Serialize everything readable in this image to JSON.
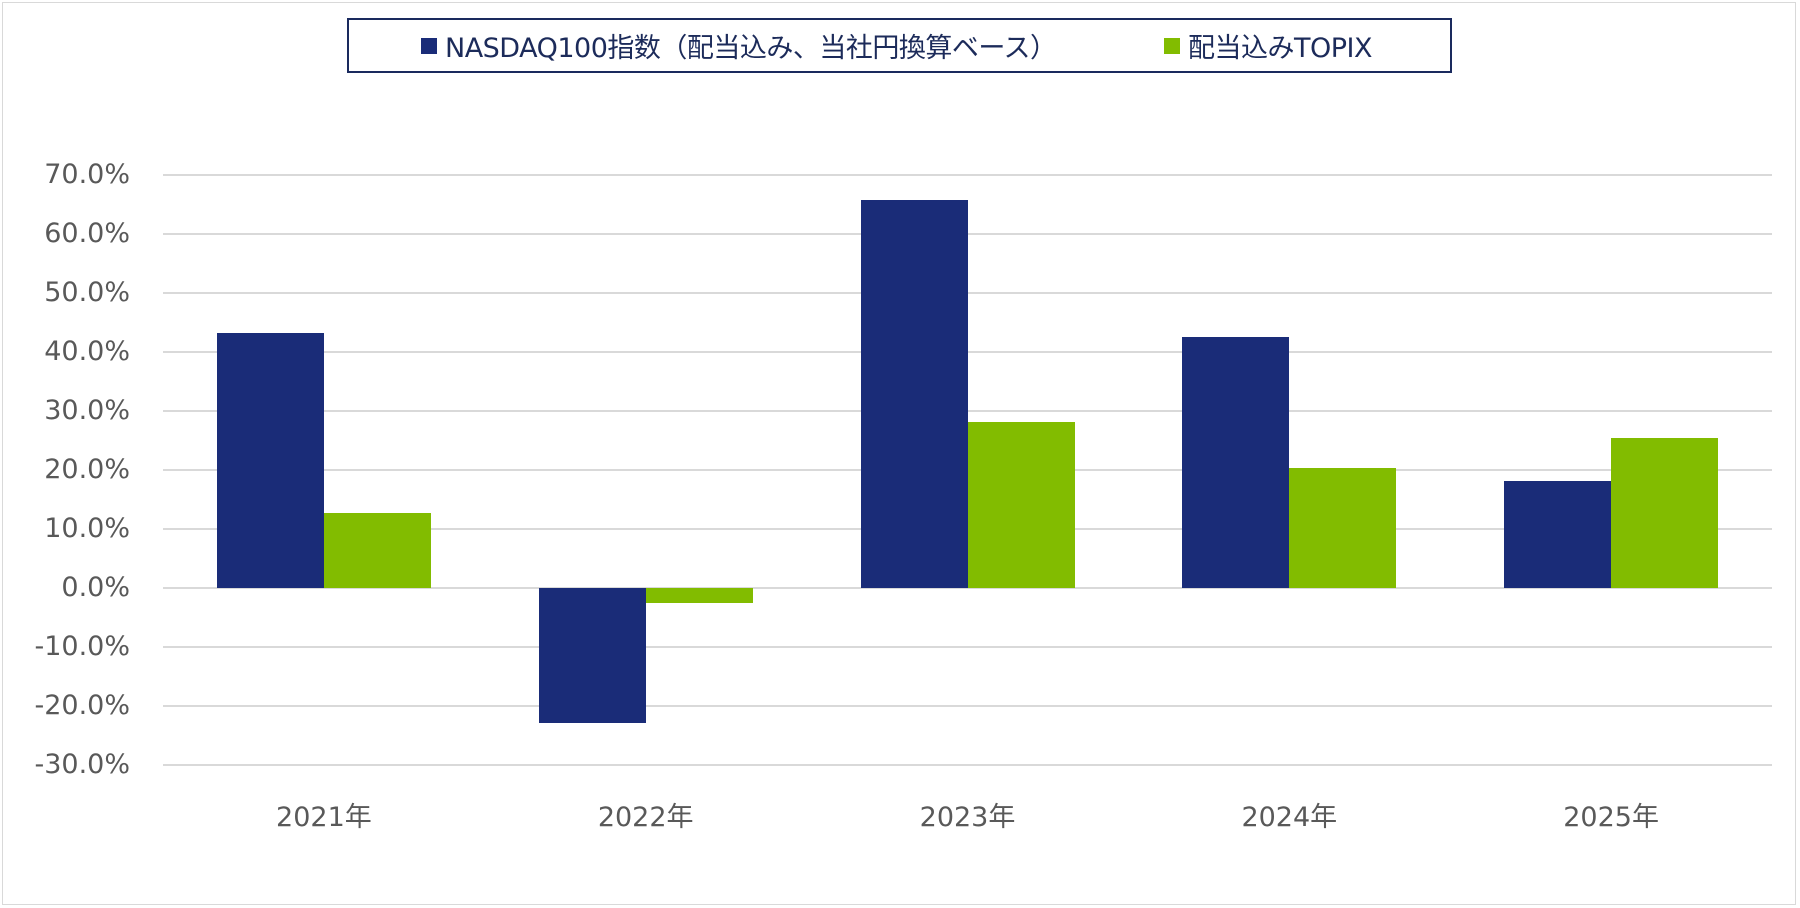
{
  "chart_data": {
    "type": "bar",
    "title": "",
    "xlabel": "",
    "ylabel": "",
    "categories": [
      "2021年",
      "2022年",
      "2023年",
      "2024年",
      "2025年"
    ],
    "series": [
      {
        "name": "NASDAQ100指数（配当込み、当社円換算ベース）",
        "color": "#1a2c78",
        "values": [
          43.3,
          -22.8,
          65.8,
          42.5,
          18.1
        ]
      },
      {
        "name": "配当込みTOPIX",
        "color": "#82bc00",
        "values": [
          12.7,
          -2.5,
          28.2,
          20.4,
          25.4
        ]
      }
    ],
    "ylim": [
      -30,
      70
    ],
    "yticks": [
      "70.0%",
      "60.0%",
      "50.0%",
      "40.0%",
      "30.0%",
      "20.0%",
      "10.0%",
      "0.0%",
      "-10.0%",
      "-20.0%",
      "-30.0%"
    ],
    "grid": true,
    "legend_position": "top"
  },
  "legend": {
    "items": [
      {
        "label": "NASDAQ100指数（配当込み、当社円換算ベース）",
        "color": "#1a2c78"
      },
      {
        "label": "配当込みTOPIX",
        "color": "#82bc00"
      }
    ]
  }
}
